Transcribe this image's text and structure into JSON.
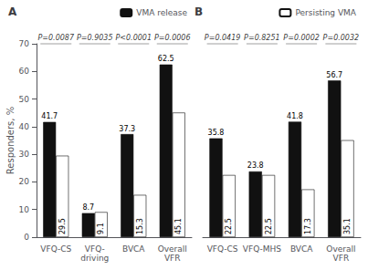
{
  "chart_data": [
    {
      "type": "bar",
      "title": "A",
      "categories": [
        "VFQ-CS",
        "VFQ-\ndriving",
        "BVCA",
        "Overall\nVFR"
      ],
      "series": [
        {
          "name": "VMA release",
          "color": "#111111",
          "values": [
            41.7,
            8.7,
            37.3,
            62.5
          ]
        },
        {
          "color": "#ffffff",
          "values": [
            29.5,
            9.1,
            15.3,
            45.1
          ]
        }
      ],
      "annotations": [
        "P=0.0087",
        "P=0.9035",
        "P<0.0001",
        "P=0.0006"
      ],
      "ylabel": "Responders, %",
      "ylim": [
        0,
        70
      ],
      "yticks": [
        0,
        10,
        20,
        30,
        40,
        50,
        60,
        70
      ],
      "grid": false,
      "legend": "upper right",
      "data_labels": true
    },
    {
      "type": "bar",
      "title": "B",
      "categories": [
        "VFQ-CS",
        "VFQ-MHS",
        "BVCA",
        "Overall\nVFR"
      ],
      "series": [
        {
          "color": "#111111",
          "values": [
            35.8,
            23.8,
            41.8,
            56.7
          ]
        },
        {
          "name": "Persisting VMA",
          "color": "#ffffff",
          "values": [
            22.5,
            22.5,
            17.3,
            35.1
          ]
        }
      ],
      "annotations": [
        "P=0.0419",
        "P=0.8251",
        "P=0.0002",
        "P=0.0032"
      ],
      "ylim": [
        0,
        70
      ],
      "yticks": [
        0,
        10,
        20,
        30,
        40,
        50,
        60,
        70
      ],
      "grid": false,
      "legend": "upper right",
      "data_labels": true,
      "tick_labels": "x"
    }
  ]
}
